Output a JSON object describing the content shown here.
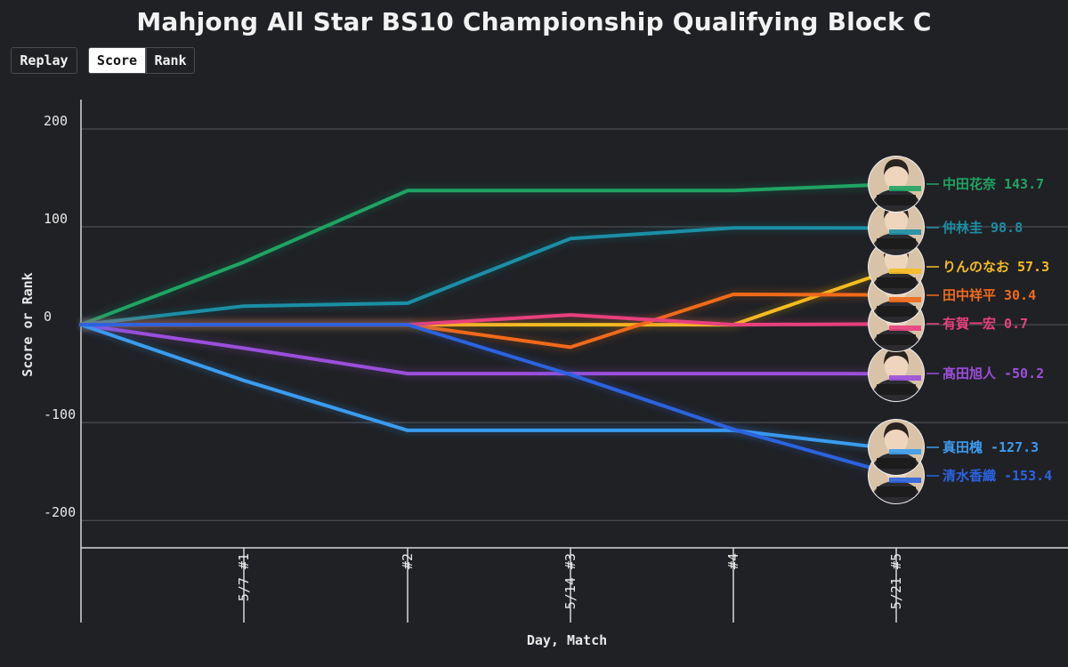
{
  "title": "Mahjong All Star BS10 Championship Qualifying Block C",
  "controls": {
    "replay_label": "Replay",
    "score_label": "Score",
    "rank_label": "Rank",
    "active": "Score"
  },
  "chart_data": {
    "type": "line",
    "title": "Mahjong All Star BS10 Championship Qualifying Block C",
    "xlabel": "Day, Match",
    "ylabel": "Score or Rank",
    "categories": [
      "",
      "5/7 #1",
      "#2",
      "5/14 #3",
      "#4",
      "5/21 #5"
    ],
    "yticks": [
      200,
      100,
      0,
      -100,
      -200
    ],
    "ylim": [
      -228,
      230
    ],
    "grid": true,
    "legend": "end-of-line labels with avatars",
    "series": [
      {
        "name": "中田花奈",
        "color": "#1fa463",
        "values": [
          0,
          64,
          137,
          137,
          137,
          143.7
        ],
        "final_label": "143.7"
      },
      {
        "name": "仲林圭",
        "color": "#1b8fa6",
        "values": [
          0,
          19,
          22,
          88,
          99,
          98.8
        ],
        "final_label": "98.8"
      },
      {
        "name": "りんのなお",
        "color": "#f5bd1f",
        "values": [
          0,
          0,
          0,
          0,
          0,
          57.3
        ],
        "final_label": "57.3"
      },
      {
        "name": "田中祥平",
        "color": "#f06a1a",
        "values": [
          0,
          0,
          0,
          -23,
          31,
          30.4
        ],
        "final_label": "30.4"
      },
      {
        "name": "有賀一宏",
        "color": "#e8407d",
        "values": [
          0,
          0,
          0,
          10,
          0,
          0.7
        ],
        "final_label": "0.7"
      },
      {
        "name": "髙田旭人",
        "color": "#9b4fdb",
        "values": [
          0,
          -24,
          -50,
          -50,
          -50,
          -50.2
        ],
        "final_label": "-50.2"
      },
      {
        "name": "真田槐",
        "color": "#3a9cf0",
        "values": [
          0,
          -57,
          -108,
          -108,
          -108,
          -127.3
        ],
        "final_label": "-127.3"
      },
      {
        "name": "清水香織",
        "color": "#2b63e0",
        "values": [
          0,
          0,
          0,
          -51,
          -107,
          -153.4
        ],
        "final_label": "-153.4"
      }
    ]
  }
}
